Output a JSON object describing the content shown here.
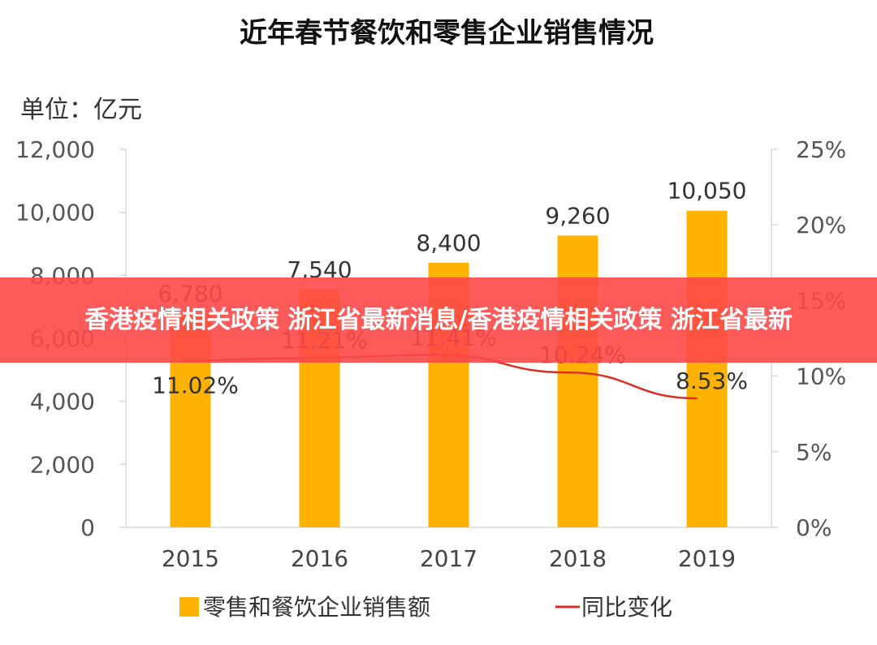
{
  "banner": {
    "text": "香港疫情相关政策 浙江省最新消息/香港疫情相关政策 浙江省最新"
  },
  "chart_data": {
    "type": "bar",
    "title": "近年春节餐饮和零售企业销售情况",
    "unit_label": "单位：亿元",
    "categories": [
      "2015",
      "2016",
      "2017",
      "2018",
      "2019"
    ],
    "series": [
      {
        "name": "零售和餐饮企业销售额",
        "type": "bar",
        "axis": "left",
        "color": "#FFB300",
        "values": [
          6780,
          7540,
          8400,
          9260,
          10050
        ],
        "labels": [
          "6,780",
          "7,540",
          "8,400",
          "9,260",
          "10,050"
        ]
      },
      {
        "name": "同比变化",
        "type": "line",
        "axis": "right",
        "color": "#D93025",
        "values": [
          11.02,
          11.21,
          11.41,
          10.24,
          8.53
        ],
        "labels": [
          "11.02%",
          "11.21%",
          "11.41%",
          "10.24%",
          "8.53%"
        ]
      }
    ],
    "y_left": {
      "min": 0,
      "max": 12000,
      "ticks": [
        "0",
        "2,000",
        "4,000",
        "6,000",
        "8,000",
        "10,000",
        "12,000"
      ]
    },
    "y_right": {
      "min": 0,
      "max": 25,
      "ticks": [
        "0%",
        "5%",
        "10%",
        "15%",
        "20%",
        "25%"
      ]
    },
    "grid": false,
    "legend": "bottom"
  }
}
